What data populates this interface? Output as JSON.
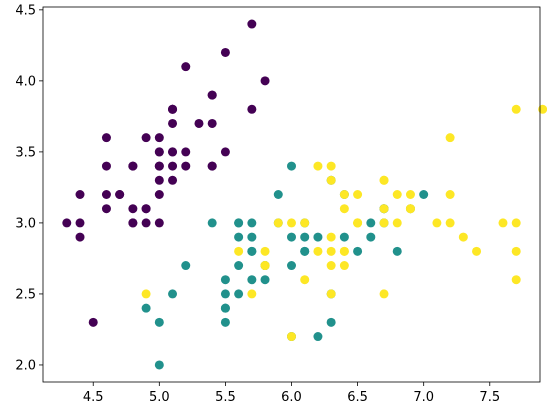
{
  "chart_data": {
    "type": "scatter",
    "title": "",
    "xlabel": "",
    "ylabel": "",
    "xlim": [
      4.12,
      7.88
    ],
    "ylim": [
      1.88,
      4.52
    ],
    "xticks": [
      4.5,
      5.0,
      5.5,
      6.0,
      6.5,
      7.0,
      7.5
    ],
    "yticks": [
      2.0,
      2.5,
      3.0,
      3.5,
      4.0,
      4.5
    ],
    "xtick_labels": [
      "4.5",
      "5.0",
      "5.5",
      "6.0",
      "6.5",
      "7.0",
      "7.5"
    ],
    "ytick_labels": [
      "2.0",
      "2.5",
      "3.0",
      "3.5",
      "4.0",
      "4.5"
    ],
    "grid": false,
    "legend": "none",
    "series": [
      {
        "color": "#440154",
        "points": [
          [
            5.1,
            3.5
          ],
          [
            4.9,
            3.0
          ],
          [
            4.7,
            3.2
          ],
          [
            4.6,
            3.1
          ],
          [
            5.0,
            3.6
          ],
          [
            5.4,
            3.9
          ],
          [
            4.6,
            3.4
          ],
          [
            5.0,
            3.4
          ],
          [
            4.4,
            2.9
          ],
          [
            4.9,
            3.1
          ],
          [
            5.4,
            3.7
          ],
          [
            4.8,
            3.4
          ],
          [
            4.8,
            3.0
          ],
          [
            4.3,
            3.0
          ],
          [
            5.8,
            4.0
          ],
          [
            5.7,
            4.4
          ],
          [
            5.4,
            3.9
          ],
          [
            5.1,
            3.5
          ],
          [
            5.7,
            3.8
          ],
          [
            5.1,
            3.8
          ],
          [
            5.4,
            3.4
          ],
          [
            5.1,
            3.7
          ],
          [
            4.6,
            3.6
          ],
          [
            5.1,
            3.3
          ],
          [
            4.8,
            3.4
          ],
          [
            5.0,
            3.0
          ],
          [
            5.0,
            3.4
          ],
          [
            5.2,
            3.5
          ],
          [
            5.2,
            3.4
          ],
          [
            4.7,
            3.2
          ],
          [
            4.8,
            3.1
          ],
          [
            5.4,
            3.4
          ],
          [
            5.2,
            4.1
          ],
          [
            5.5,
            4.2
          ],
          [
            4.9,
            3.1
          ],
          [
            5.0,
            3.2
          ],
          [
            5.5,
            3.5
          ],
          [
            4.9,
            3.6
          ],
          [
            4.4,
            3.0
          ],
          [
            5.1,
            3.4
          ],
          [
            5.0,
            3.5
          ],
          [
            4.5,
            2.3
          ],
          [
            4.4,
            3.2
          ],
          [
            5.0,
            3.5
          ],
          [
            5.1,
            3.8
          ],
          [
            4.8,
            3.0
          ],
          [
            5.1,
            3.8
          ],
          [
            4.6,
            3.2
          ],
          [
            5.3,
            3.7
          ],
          [
            5.0,
            3.3
          ]
        ]
      },
      {
        "color": "#21918c",
        "points": [
          [
            7.0,
            3.2
          ],
          [
            6.4,
            3.2
          ],
          [
            6.9,
            3.1
          ],
          [
            5.5,
            2.3
          ],
          [
            6.5,
            2.8
          ],
          [
            5.7,
            2.8
          ],
          [
            6.3,
            3.3
          ],
          [
            4.9,
            2.4
          ],
          [
            6.6,
            2.9
          ],
          [
            5.2,
            2.7
          ],
          [
            5.0,
            2.0
          ],
          [
            5.9,
            3.0
          ],
          [
            6.0,
            2.2
          ],
          [
            6.1,
            2.9
          ],
          [
            5.6,
            2.9
          ],
          [
            6.7,
            3.1
          ],
          [
            5.6,
            3.0
          ],
          [
            5.8,
            2.7
          ],
          [
            6.2,
            2.2
          ],
          [
            5.6,
            2.5
          ],
          [
            5.9,
            3.2
          ],
          [
            6.1,
            2.8
          ],
          [
            6.3,
            2.5
          ],
          [
            6.1,
            2.8
          ],
          [
            6.4,
            2.9
          ],
          [
            6.6,
            3.0
          ],
          [
            6.8,
            2.8
          ],
          [
            6.7,
            3.0
          ],
          [
            6.0,
            2.9
          ],
          [
            5.7,
            2.6
          ],
          [
            5.5,
            2.4
          ],
          [
            5.5,
            2.4
          ],
          [
            5.8,
            2.7
          ],
          [
            6.0,
            2.7
          ],
          [
            5.4,
            3.0
          ],
          [
            6.0,
            3.4
          ],
          [
            6.7,
            3.1
          ],
          [
            6.3,
            2.3
          ],
          [
            5.6,
            3.0
          ],
          [
            5.5,
            2.5
          ],
          [
            5.5,
            2.6
          ],
          [
            6.1,
            3.0
          ],
          [
            5.8,
            2.6
          ],
          [
            5.0,
            2.3
          ],
          [
            5.6,
            2.7
          ],
          [
            5.7,
            3.0
          ],
          [
            5.7,
            2.9
          ],
          [
            6.2,
            2.9
          ],
          [
            5.1,
            2.5
          ],
          [
            5.7,
            2.8
          ]
        ]
      },
      {
        "color": "#fde725",
        "points": [
          [
            6.3,
            3.3
          ],
          [
            5.8,
            2.7
          ],
          [
            7.1,
            3.0
          ],
          [
            6.3,
            2.9
          ],
          [
            6.5,
            3.0
          ],
          [
            7.6,
            3.0
          ],
          [
            4.9,
            2.5
          ],
          [
            7.3,
            2.9
          ],
          [
            6.7,
            2.5
          ],
          [
            7.2,
            3.6
          ],
          [
            6.5,
            3.2
          ],
          [
            6.4,
            2.7
          ],
          [
            6.8,
            3.0
          ],
          [
            5.7,
            2.5
          ],
          [
            5.8,
            2.8
          ],
          [
            6.4,
            3.2
          ],
          [
            6.5,
            3.0
          ],
          [
            7.7,
            3.8
          ],
          [
            7.7,
            2.6
          ],
          [
            6.0,
            2.2
          ],
          [
            6.9,
            3.2
          ],
          [
            5.6,
            2.8
          ],
          [
            7.7,
            2.8
          ],
          [
            6.3,
            2.7
          ],
          [
            6.7,
            3.3
          ],
          [
            7.2,
            3.2
          ],
          [
            6.2,
            2.8
          ],
          [
            6.1,
            3.0
          ],
          [
            6.4,
            2.8
          ],
          [
            7.2,
            3.0
          ],
          [
            7.4,
            2.8
          ],
          [
            7.9,
            3.8
          ],
          [
            6.4,
            2.8
          ],
          [
            6.3,
            2.8
          ],
          [
            6.1,
            2.6
          ],
          [
            7.7,
            3.0
          ],
          [
            6.3,
            3.4
          ],
          [
            6.4,
            3.1
          ],
          [
            6.0,
            3.0
          ],
          [
            6.9,
            3.1
          ],
          [
            6.7,
            3.1
          ],
          [
            6.9,
            3.1
          ],
          [
            5.8,
            2.7
          ],
          [
            6.8,
            3.2
          ],
          [
            6.7,
            3.3
          ],
          [
            6.7,
            3.0
          ],
          [
            6.3,
            2.5
          ],
          [
            6.5,
            3.0
          ],
          [
            6.2,
            3.4
          ],
          [
            5.9,
            3.0
          ]
        ]
      }
    ]
  }
}
